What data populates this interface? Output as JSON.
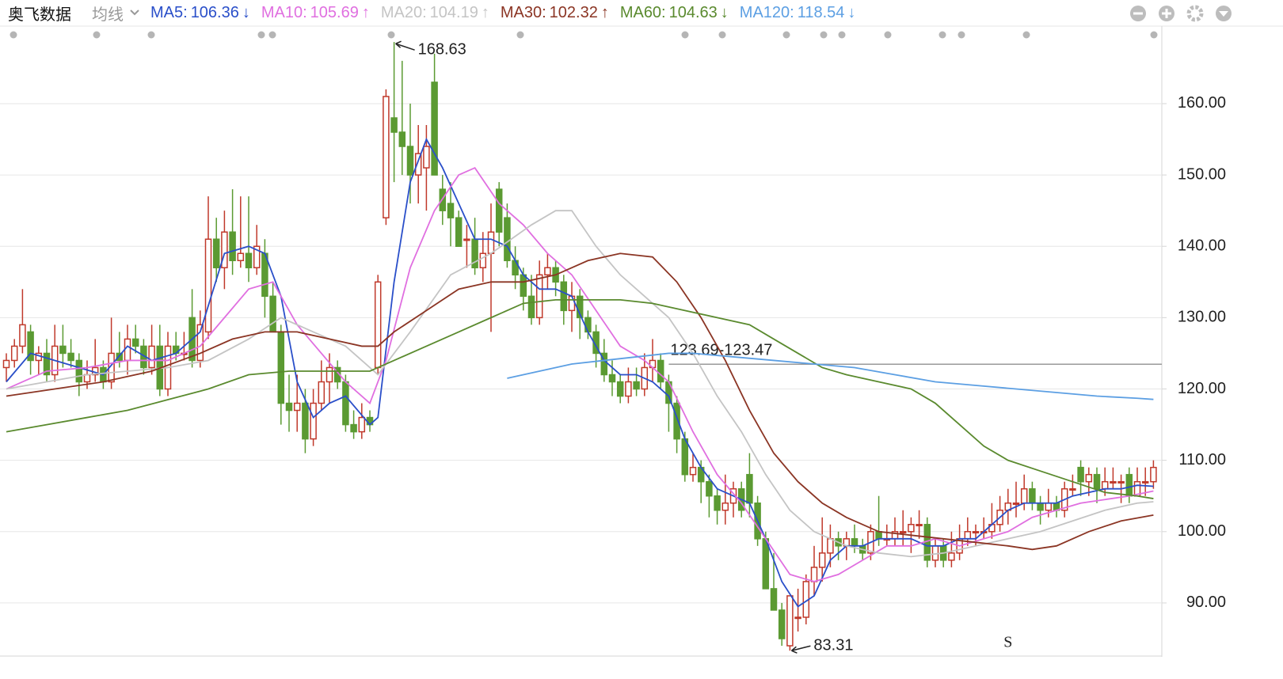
{
  "header": {
    "stock": "奥飞数据",
    "indicator": "均线"
  },
  "chart_data": {
    "type": "candlestick",
    "ylim": [
      82.67,
      171.2
    ],
    "yticks": [
      {
        "value": 90,
        "label": "90.00"
      },
      {
        "value": 100,
        "label": "100.00"
      },
      {
        "value": 110,
        "label": "110.00"
      },
      {
        "value": 120,
        "label": "120.00"
      },
      {
        "value": 130,
        "label": "130.00"
      },
      {
        "value": 140,
        "label": "140.00"
      },
      {
        "value": 150,
        "label": "150.00"
      },
      {
        "value": 160,
        "label": "160.00"
      }
    ],
    "grid": true,
    "up_color": "#c0392b",
    "down_color": "#5b9a32",
    "ohlc": [
      [
        123,
        125,
        121,
        124
      ],
      [
        124,
        127,
        123,
        126
      ],
      [
        126,
        134,
        125,
        129
      ],
      [
        128,
        129,
        122,
        124
      ],
      [
        124,
        126,
        122,
        125
      ],
      [
        125,
        127,
        121,
        122
      ],
      [
        122,
        129,
        121,
        126
      ],
      [
        126,
        129,
        123,
        125
      ],
      [
        125,
        127,
        123,
        124
      ],
      [
        124,
        125,
        119,
        121
      ],
      [
        121,
        124,
        120,
        122
      ],
      [
        122,
        127,
        121,
        123
      ],
      [
        123,
        124,
        120,
        121
      ],
      [
        121,
        130,
        120,
        125
      ],
      [
        125,
        128,
        123,
        124
      ],
      [
        124,
        129,
        122,
        127
      ],
      [
        127,
        129,
        125,
        126
      ],
      [
        126,
        127,
        122,
        123
      ],
      [
        123,
        129,
        122,
        126
      ],
      [
        126,
        129,
        119,
        120
      ],
      [
        120,
        128,
        119,
        126
      ],
      [
        126,
        128,
        124,
        125
      ],
      [
        125,
        128,
        124,
        125
      ],
      [
        130,
        134,
        123,
        124
      ],
      [
        124,
        131,
        123,
        129
      ],
      [
        128,
        147,
        127,
        141
      ],
      [
        141,
        144,
        135,
        137
      ],
      [
        137,
        145,
        134,
        142
      ],
      [
        142,
        148,
        136,
        138
      ],
      [
        138,
        147,
        137,
        139
      ],
      [
        139,
        147,
        135,
        137
      ],
      [
        137,
        143,
        136,
        140
      ],
      [
        139,
        141,
        130,
        133
      ],
      [
        133,
        135,
        128,
        128
      ],
      [
        128,
        129,
        115,
        118
      ],
      [
        118,
        122,
        114,
        117
      ],
      [
        117,
        122,
        114,
        118
      ],
      [
        118,
        120,
        111,
        113
      ],
      [
        113,
        120,
        112,
        118
      ],
      [
        118,
        124,
        117,
        121
      ],
      [
        121,
        125,
        118,
        123
      ],
      [
        123,
        124,
        120,
        121
      ],
      [
        121,
        122,
        114,
        115
      ],
      [
        115,
        117,
        113,
        114
      ],
      [
        114,
        118,
        113,
        116
      ],
      [
        116,
        117,
        114,
        115
      ],
      [
        123,
        136,
        122,
        135
      ],
      [
        144,
        162,
        143,
        161
      ],
      [
        158,
        168.63,
        149,
        156
      ],
      [
        156,
        166,
        150,
        154
      ],
      [
        154,
        160,
        146,
        150
      ],
      [
        150,
        157,
        146,
        153
      ],
      [
        151,
        157,
        145,
        154
      ],
      [
        163,
        167,
        150,
        150
      ],
      [
        148,
        150,
        143,
        145
      ],
      [
        146,
        149,
        140,
        144
      ],
      [
        144,
        145,
        140,
        140
      ],
      [
        141,
        143,
        137,
        141
      ],
      [
        141,
        144,
        136,
        137
      ],
      [
        137,
        142,
        135,
        139
      ],
      [
        139,
        146,
        128,
        142
      ],
      [
        148,
        149,
        140,
        142
      ],
      [
        144,
        146,
        137,
        138
      ],
      [
        138,
        140,
        134,
        136
      ],
      [
        136,
        137,
        131,
        133
      ],
      [
        133,
        136,
        129,
        130
      ],
      [
        130,
        138,
        129,
        136
      ],
      [
        136,
        139,
        134,
        137
      ],
      [
        137,
        138,
        133,
        135
      ],
      [
        135,
        136,
        129,
        131
      ],
      [
        131,
        135,
        128,
        133
      ],
      [
        133,
        134,
        127,
        130
      ],
      [
        130,
        131,
        127,
        128
      ],
      [
        128,
        129,
        123,
        125
      ],
      [
        125,
        127,
        121,
        122
      ],
      [
        122,
        124,
        119,
        121
      ],
      [
        121,
        122,
        118,
        119
      ],
      [
        119,
        123,
        118,
        121
      ],
      [
        121,
        123,
        119,
        120
      ],
      [
        120,
        125,
        119,
        123
      ],
      [
        123,
        127,
        121,
        124
      ],
      [
        124,
        125,
        120,
        121
      ],
      [
        121,
        122,
        114,
        118
      ],
      [
        118,
        119,
        111,
        113
      ],
      [
        113,
        114,
        107,
        108
      ],
      [
        108,
        111,
        107,
        109
      ],
      [
        109,
        110,
        104,
        107
      ],
      [
        107,
        108,
        102,
        105
      ],
      [
        105,
        106,
        101,
        103
      ],
      [
        103,
        108,
        101,
        104
      ],
      [
        104,
        107,
        102,
        106
      ],
      [
        106,
        107,
        102,
        103
      ],
      [
        108,
        111,
        102,
        104
      ],
      [
        104,
        105,
        98,
        99
      ],
      [
        99,
        100,
        92,
        92
      ],
      [
        92,
        97,
        89,
        89
      ],
      [
        89,
        90,
        84,
        85
      ],
      [
        84,
        91,
        83.31,
        91
      ],
      [
        88,
        92,
        86,
        88
      ],
      [
        88,
        94,
        87,
        93
      ],
      [
        93,
        98,
        91,
        95
      ],
      [
        95,
        102,
        93,
        97
      ],
      [
        97,
        101,
        95,
        99
      ],
      [
        99,
        100,
        96,
        98
      ],
      [
        98,
        100,
        96,
        99
      ],
      [
        99,
        101,
        97,
        98
      ],
      [
        98,
        99,
        96,
        97
      ],
      [
        97,
        101,
        96,
        100
      ],
      [
        100,
        105,
        98,
        99
      ],
      [
        99,
        101,
        98,
        99
      ],
      [
        99,
        102,
        98,
        100
      ],
      [
        100,
        103,
        98,
        100
      ],
      [
        100,
        102,
        97,
        101
      ],
      [
        101,
        103,
        99,
        101
      ],
      [
        101,
        102,
        95,
        96
      ],
      [
        96,
        99,
        95,
        98
      ],
      [
        98,
        99,
        95,
        96
      ],
      [
        96,
        100,
        95,
        97
      ],
      [
        97,
        101,
        96,
        99
      ],
      [
        99,
        102,
        98,
        100
      ],
      [
        100,
        101,
        98,
        100
      ],
      [
        100,
        102,
        99,
        100
      ],
      [
        100,
        104,
        99,
        101
      ],
      [
        101,
        105,
        100,
        103
      ],
      [
        103,
        106,
        101,
        104
      ],
      [
        104,
        107,
        102,
        104
      ],
      [
        104,
        108,
        103,
        106
      ],
      [
        106,
        107,
        103,
        104
      ],
      [
        104,
        105,
        101,
        103
      ],
      [
        103,
        106,
        102,
        104
      ],
      [
        104,
        105,
        102,
        103
      ],
      [
        103,
        107,
        102,
        106
      ],
      [
        106,
        108,
        105,
        106
      ],
      [
        109,
        110,
        105,
        107
      ],
      [
        107,
        109,
        105,
        108
      ],
      [
        108,
        109,
        104,
        106
      ],
      [
        106,
        109,
        105,
        107
      ],
      [
        107,
        109,
        106,
        107
      ],
      [
        107,
        108,
        104,
        107
      ],
      [
        108,
        109,
        104,
        105
      ],
      [
        105,
        109,
        105,
        107
      ],
      [
        107,
        109,
        105,
        107
      ],
      [
        107,
        110,
        106,
        109
      ]
    ],
    "series": [
      {
        "name": "MA5:",
        "color": "#2a4fc9",
        "trend": "↓",
        "x": [
          0,
          3,
          6,
          9,
          12,
          15,
          18,
          21,
          24,
          27,
          30,
          32,
          34,
          36,
          38,
          40,
          42,
          45,
          46,
          48,
          50,
          52,
          54,
          56,
          58,
          60,
          62,
          64,
          66,
          68,
          70,
          72,
          74,
          76,
          78,
          80,
          82,
          84,
          86,
          88,
          90,
          92,
          94,
          96,
          98,
          100,
          102,
          104,
          106,
          108,
          110,
          112,
          114,
          116,
          118,
          120,
          122,
          124,
          126,
          128,
          130,
          132,
          134,
          136,
          138,
          140,
          142
        ],
        "values": [
          121,
          125,
          124,
          123,
          122,
          126,
          124,
          125,
          128,
          139,
          140,
          139,
          133,
          121,
          116,
          118,
          119,
          115,
          116,
          135,
          149,
          155,
          151,
          146,
          141,
          141,
          140,
          136,
          134,
          134,
          133,
          128,
          124,
          122,
          122,
          121,
          119,
          113,
          109,
          106,
          105,
          104,
          99,
          93,
          89.5,
          91,
          96,
          98,
          98,
          99,
          99,
          99,
          98,
          98,
          99,
          99,
          101,
          103,
          104,
          104,
          104,
          105,
          105.5,
          106,
          106,
          106.5,
          106.36
        ]
      },
      {
        "name": "MA10:",
        "color": "#e06fe0",
        "trend": "↑",
        "x": [
          0,
          5,
          10,
          15,
          20,
          24,
          27,
          30,
          33,
          36,
          39,
          42,
          45,
          47,
          50,
          53,
          56,
          58,
          61,
          64,
          67,
          70,
          73,
          76,
          79,
          82,
          85,
          88,
          91,
          94,
          97,
          100,
          103,
          106,
          109,
          112,
          115,
          118,
          121,
          124,
          127,
          130,
          133,
          136,
          139,
          142
        ],
        "values": [
          120,
          122.5,
          123,
          124,
          124,
          126,
          130,
          134,
          135,
          129,
          125,
          121,
          118,
          124,
          137,
          145,
          150,
          151,
          146,
          143,
          139,
          136,
          131,
          126,
          124,
          121,
          114,
          108,
          104,
          99,
          94,
          93,
          94,
          96,
          98,
          98,
          99,
          98,
          99,
          100,
          102,
          103,
          104,
          104.5,
          105,
          105.69
        ]
      },
      {
        "name": "MA20:",
        "color": "#c4c4c4",
        "trend": "↑",
        "x": [
          0,
          10,
          20,
          25,
          30,
          34,
          38,
          42,
          46,
          50,
          55,
          60,
          65,
          68,
          70,
          73,
          76,
          79,
          82,
          85,
          88,
          91,
          94,
          97,
          100,
          104,
          108,
          112,
          116,
          120,
          124,
          128,
          132,
          136,
          140,
          142
        ],
        "values": [
          120,
          122,
          123,
          124,
          127,
          130,
          128,
          126,
          122,
          128,
          136,
          139,
          143,
          145,
          145,
          140,
          136,
          133,
          130,
          125,
          119,
          114,
          108,
          103,
          100,
          98,
          97,
          96.5,
          97,
          98,
          99,
          100,
          101.5,
          103,
          104,
          104.19
        ]
      },
      {
        "name": "MA30:",
        "color": "#8b3524",
        "trend": "↑",
        "x": [
          0,
          6,
          12,
          18,
          24,
          28,
          32,
          36,
          40,
          44,
          46,
          48,
          52,
          56,
          60,
          64,
          68,
          72,
          76,
          80,
          83,
          86,
          89,
          92,
          95,
          98,
          101,
          104,
          108,
          112,
          116,
          120,
          124,
          127,
          130,
          134,
          138,
          142
        ],
        "values": [
          119,
          120,
          121,
          122.5,
          125,
          127,
          128,
          128,
          127,
          126,
          126,
          128,
          131,
          134,
          135,
          135,
          136,
          138,
          139,
          138.5,
          135,
          130,
          124,
          117,
          111,
          107,
          104,
          102,
          100,
          99.5,
          99,
          98.5,
          98,
          97.5,
          98,
          100,
          101.5,
          102.32
        ]
      },
      {
        "name": "MA60:",
        "color": "#5a8a2e",
        "trend": "↓",
        "x": [
          0,
          5,
          10,
          15,
          20,
          25,
          30,
          35,
          40,
          45,
          48,
          52,
          56,
          60,
          64,
          68,
          72,
          76,
          80,
          84,
          88,
          92,
          95,
          98,
          101,
          104,
          108,
          112,
          115,
          118,
          121,
          124,
          128,
          132,
          136,
          140,
          142
        ],
        "values": [
          114,
          115,
          116,
          117,
          118.5,
          120,
          122,
          122.5,
          122.5,
          122.5,
          124,
          126,
          128,
          130,
          132,
          132.5,
          132.5,
          132.5,
          132,
          131,
          130,
          129,
          127,
          125,
          123,
          122,
          121,
          120,
          118,
          115,
          112,
          110,
          108.5,
          107,
          105.5,
          105,
          104.63
        ]
      },
      {
        "name": "MA120:",
        "color": "#5c9fe3",
        "trend": "↓",
        "x": [
          62,
          66,
          70,
          74,
          78,
          82,
          85,
          90,
          95,
          100,
          105,
          110,
          115,
          120,
          125,
          130,
          135,
          140,
          142
        ],
        "values": [
          121.5,
          122.5,
          123.5,
          124,
          124.5,
          125,
          125,
          124.5,
          124,
          123.5,
          123,
          122,
          121,
          120.5,
          120,
          119.5,
          119,
          118.7,
          118.54
        ]
      }
    ],
    "level": 123.47,
    "level_label": "123.69-123.47",
    "level_start": 82,
    "high_index": 48,
    "low_index": 97,
    "signal": "S",
    "signal_index": 124
  }
}
